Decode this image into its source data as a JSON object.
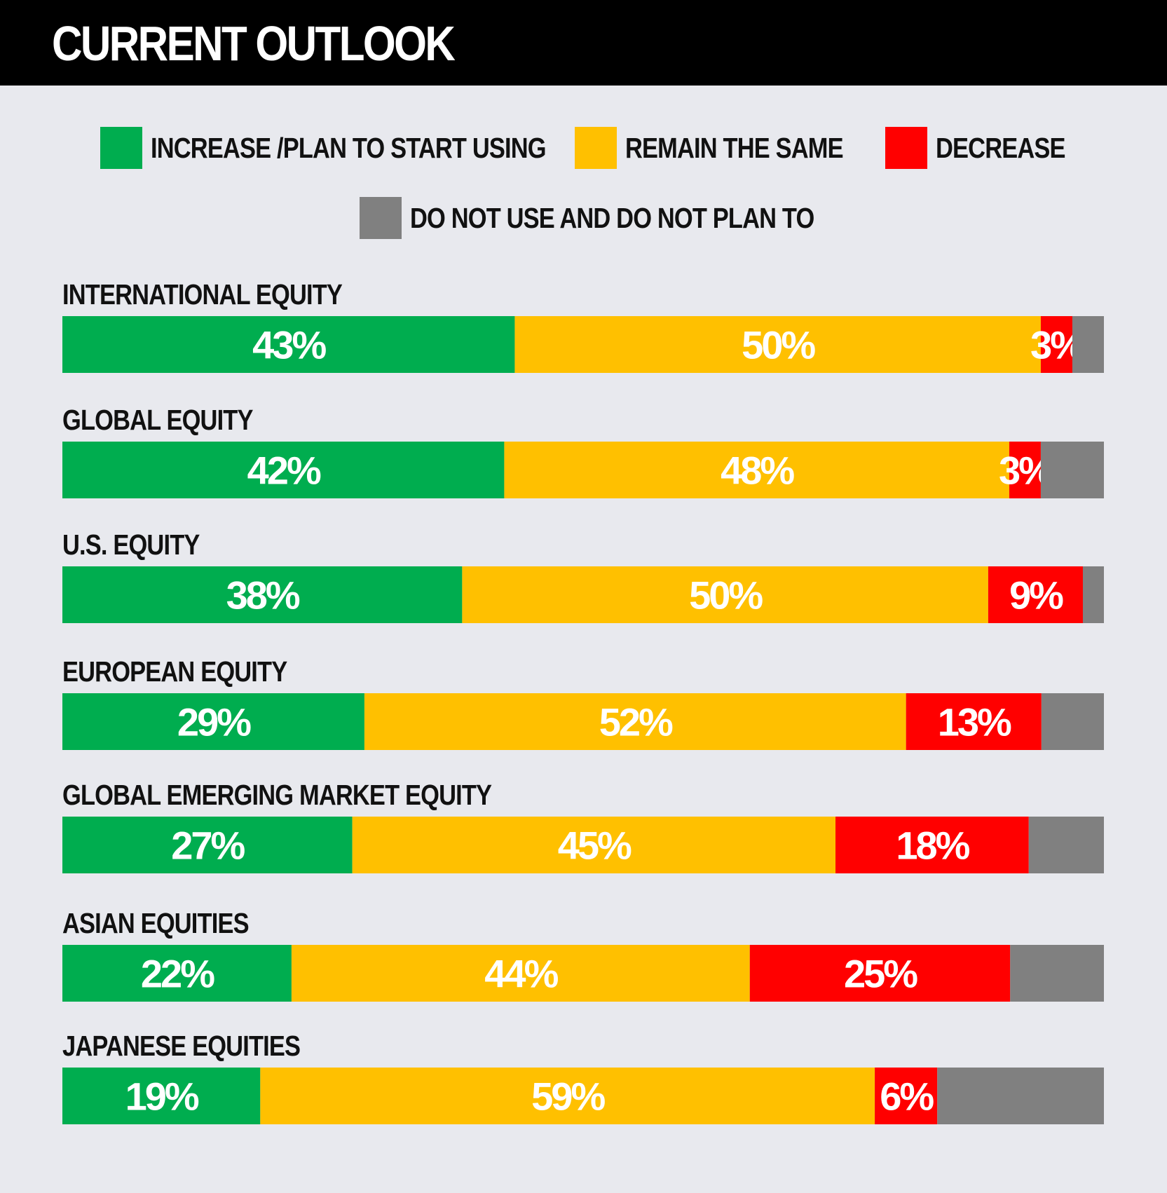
{
  "title": "CURRENT OUTLOOK",
  "chart_data": {
    "type": "bar",
    "orientation": "horizontal",
    "stacked": true,
    "percent_scale": true,
    "series": [
      {
        "name": "INCREASE /PLAN TO START USING",
        "color": "#00ad4f",
        "values": [
          43,
          42,
          38,
          29,
          27,
          22,
          19
        ]
      },
      {
        "name": "REMAIN THE SAME",
        "color": "#ffc000",
        "values": [
          50,
          48,
          50,
          52,
          45,
          44,
          59
        ]
      },
      {
        "name": "DECREASE",
        "color": "#ff0000",
        "values": [
          3,
          3,
          9,
          13,
          18,
          25,
          6
        ]
      },
      {
        "name": "DO NOT USE AND DO NOT PLAN TO",
        "color": "#808080",
        "values": [
          3,
          6,
          2,
          6,
          7,
          9,
          16
        ]
      }
    ],
    "categories": [
      "INTERNATIONAL EQUITY",
      "GLOBAL EQUITY",
      "U.S. EQUITY",
      "EUROPEAN EQUITY",
      "GLOBAL EMERGING MARKET EQUITY",
      "ASIAN EQUITIES",
      "JAPANESE EQUITIES"
    ],
    "data_labels": [
      [
        "43%",
        "50%",
        "3%",
        ""
      ],
      [
        "42%",
        "48%",
        "3%",
        ""
      ],
      [
        "38%",
        "50%",
        "9%",
        ""
      ],
      [
        "29%",
        "52%",
        "13%",
        ""
      ],
      [
        "27%",
        "45%",
        "18%",
        ""
      ],
      [
        "22%",
        "44%",
        "25%",
        ""
      ],
      [
        "19%",
        "59%",
        "6%",
        ""
      ]
    ],
    "xlim": [
      0,
      100
    ],
    "grid": false,
    "legend_position": "top"
  }
}
